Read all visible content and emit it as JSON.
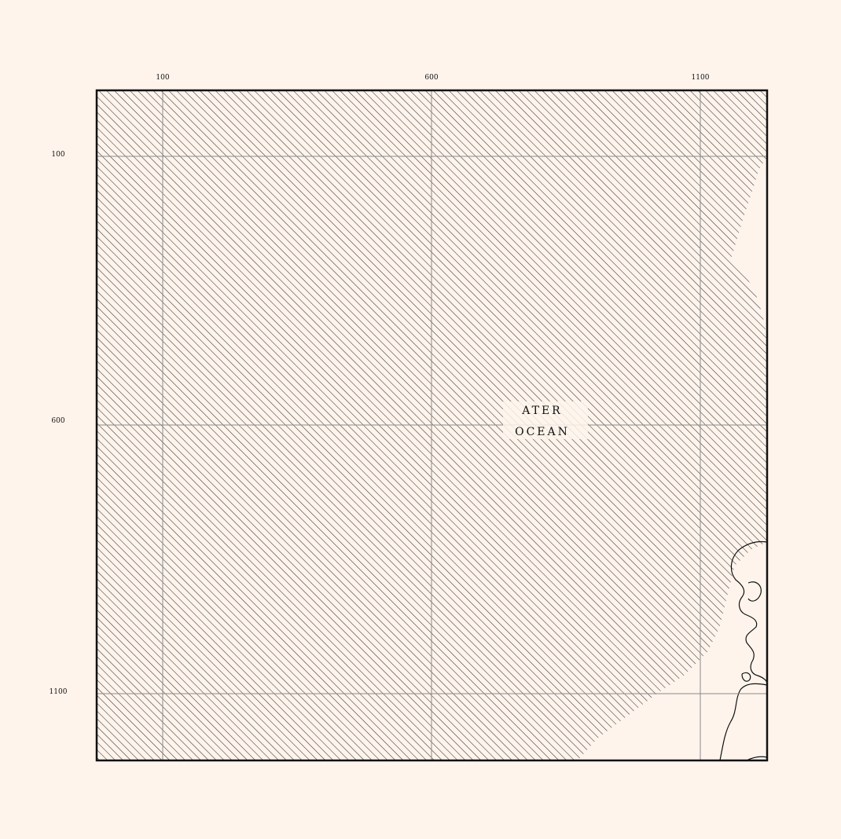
{
  "map": {
    "grid_x_labels": [
      "100",
      "600",
      "1100"
    ],
    "grid_y_labels": [
      "100",
      "600",
      "1100"
    ],
    "ocean_label": {
      "line1": "ATER",
      "line2": "OCEAN"
    },
    "colors": {
      "background": "#fef4ec",
      "ink": "#111111",
      "grid": "#8a8a8a",
      "hatch": "#333333"
    }
  }
}
